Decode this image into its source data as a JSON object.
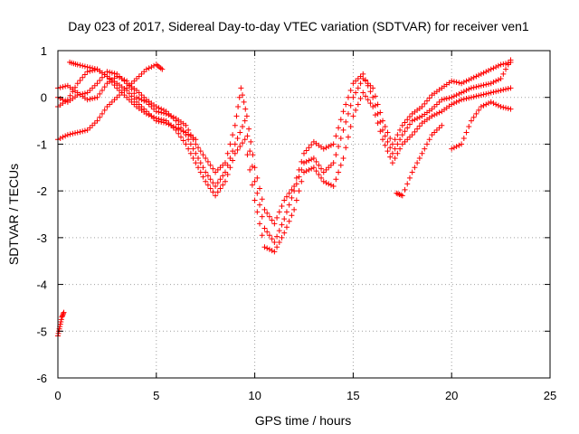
{
  "chart_data": {
    "type": "scatter",
    "title": "Day 023 of 2017, Sidereal Day-to-day VTEC variation (SDTVAR) for receiver ven1",
    "xlabel": "GPS time / hours",
    "ylabel": "SDTVAR / TECUs",
    "xlim": [
      0,
      25
    ],
    "ylim": [
      -6,
      1
    ],
    "x_ticks": [
      0,
      5,
      10,
      15,
      20,
      25
    ],
    "y_ticks": [
      1,
      0,
      -1,
      -2,
      -3,
      -4,
      -5,
      -6
    ],
    "grid": true,
    "marker": "plus",
    "color": "#ff0000",
    "series": [
      {
        "points": [
          [
            0.0,
            -5.1
          ],
          [
            0.1,
            -4.9
          ],
          [
            0.2,
            -4.7
          ],
          [
            0.3,
            -4.6
          ]
        ]
      },
      {
        "points": [
          [
            0.0,
            0.2
          ],
          [
            0.5,
            0.25
          ],
          [
            1.0,
            0.1
          ],
          [
            1.5,
            -0.05
          ],
          [
            2.0,
            0.0
          ],
          [
            2.5,
            0.3
          ],
          [
            3.0,
            0.45
          ],
          [
            3.5,
            0.35
          ],
          [
            4.0,
            0.0
          ],
          [
            4.5,
            -0.1
          ],
          [
            5.0,
            -0.3
          ],
          [
            5.5,
            -0.35
          ],
          [
            6.0,
            -0.45
          ],
          [
            6.5,
            -0.6
          ],
          [
            7.0,
            -1.0
          ],
          [
            7.5,
            -1.3
          ],
          [
            8.0,
            -1.6
          ],
          [
            8.5,
            -1.4
          ],
          [
            9.0,
            -0.6
          ],
          [
            9.3,
            0.2
          ],
          [
            9.6,
            -0.4
          ],
          [
            10.0,
            -1.5
          ],
          [
            10.5,
            -2.4
          ],
          [
            11.0,
            -2.7
          ],
          [
            11.5,
            -2.2
          ],
          [
            12.0,
            -1.9
          ],
          [
            12.5,
            -1.2
          ],
          [
            13.0,
            -0.95
          ],
          [
            13.5,
            -1.1
          ],
          [
            14.0,
            -1.0
          ],
          [
            14.5,
            -0.3
          ],
          [
            15.0,
            0.3
          ],
          [
            15.5,
            0.5
          ],
          [
            16.0,
            0.0
          ],
          [
            16.5,
            -0.7
          ],
          [
            17.0,
            -1.2
          ],
          [
            17.5,
            -0.8
          ],
          [
            18.0,
            -0.5
          ],
          [
            18.5,
            -0.4
          ],
          [
            19.0,
            -0.25
          ],
          [
            19.5,
            -0.05
          ],
          [
            20.0,
            0.0
          ],
          [
            20.5,
            0.1
          ],
          [
            21.0,
            0.2
          ],
          [
            21.5,
            0.25
          ],
          [
            22.0,
            0.3
          ],
          [
            22.5,
            0.4
          ],
          [
            23.0,
            0.8
          ]
        ]
      },
      {
        "points": [
          [
            0.0,
            0.0
          ],
          [
            0.5,
            -0.1
          ],
          [
            1.0,
            0.05
          ],
          [
            1.5,
            0.1
          ],
          [
            2.0,
            0.3
          ],
          [
            2.5,
            0.55
          ],
          [
            3.0,
            0.5
          ],
          [
            3.5,
            0.3
          ],
          [
            4.0,
            0.15
          ],
          [
            4.5,
            -0.05
          ],
          [
            5.0,
            -0.2
          ],
          [
            5.5,
            -0.3
          ],
          [
            6.0,
            -0.5
          ],
          [
            6.5,
            -0.8
          ],
          [
            7.0,
            -1.2
          ],
          [
            7.5,
            -1.6
          ],
          [
            8.0,
            -1.9
          ],
          [
            8.5,
            -1.6
          ],
          [
            9.0,
            -1.0
          ],
          [
            9.5,
            -0.5
          ],
          [
            10.0,
            -1.8
          ],
          [
            10.5,
            -2.8
          ],
          [
            11.0,
            -3.1
          ],
          [
            11.5,
            -2.6
          ],
          [
            12.0,
            -2.0
          ],
          [
            12.5,
            -1.4
          ],
          [
            13.0,
            -1.3
          ],
          [
            13.5,
            -1.6
          ],
          [
            14.0,
            -1.4
          ],
          [
            14.5,
            -0.7
          ],
          [
            15.0,
            0.0
          ],
          [
            15.5,
            0.4
          ],
          [
            16.0,
            0.2
          ],
          [
            16.5,
            -0.5
          ],
          [
            17.0,
            -1.0
          ],
          [
            17.5,
            -0.6
          ],
          [
            18.0,
            -0.35
          ],
          [
            18.5,
            -0.2
          ],
          [
            19.0,
            0.05
          ],
          [
            19.5,
            0.2
          ],
          [
            20.0,
            0.35
          ],
          [
            20.5,
            0.3
          ],
          [
            21.0,
            0.4
          ],
          [
            21.5,
            0.5
          ],
          [
            22.0,
            0.6
          ],
          [
            22.5,
            0.7
          ],
          [
            23.0,
            0.75
          ]
        ]
      },
      {
        "points": [
          [
            0.0,
            -0.2
          ],
          [
            0.5,
            -0.05
          ],
          [
            1.0,
            0.3
          ],
          [
            1.5,
            0.55
          ],
          [
            2.0,
            0.6
          ],
          [
            2.5,
            0.45
          ],
          [
            3.0,
            0.2
          ],
          [
            3.5,
            0.0
          ],
          [
            4.0,
            -0.2
          ],
          [
            4.5,
            -0.35
          ],
          [
            5.0,
            -0.45
          ],
          [
            5.5,
            -0.5
          ],
          [
            6.0,
            -0.7
          ],
          [
            6.5,
            -1.0
          ],
          [
            7.0,
            -1.4
          ],
          [
            7.5,
            -1.8
          ],
          [
            8.0,
            -2.1
          ],
          [
            8.5,
            -1.8
          ],
          [
            9.0,
            -1.2
          ],
          [
            9.5,
            -0.9
          ],
          [
            10.0,
            -2.2
          ],
          [
            10.5,
            -3.2
          ],
          [
            11.0,
            -3.3
          ],
          [
            11.5,
            -2.9
          ],
          [
            12.0,
            -2.4
          ],
          [
            12.5,
            -1.6
          ],
          [
            13.0,
            -1.5
          ],
          [
            13.5,
            -1.8
          ],
          [
            14.0,
            -1.9
          ],
          [
            14.5,
            -1.3
          ],
          [
            15.0,
            -0.4
          ],
          [
            15.5,
            0.1
          ],
          [
            16.0,
            -0.2
          ],
          [
            16.5,
            -0.9
          ],
          [
            17.0,
            -1.4
          ],
          [
            17.5,
            -1.0
          ],
          [
            18.0,
            -0.8
          ],
          [
            18.5,
            -0.55
          ],
          [
            19.0,
            -0.4
          ],
          [
            19.5,
            -0.3
          ],
          [
            20.0,
            -0.15
          ],
          [
            20.5,
            -0.05
          ],
          [
            21.0,
            0.0
          ],
          [
            21.5,
            0.05
          ],
          [
            22.0,
            0.1
          ],
          [
            22.5,
            0.15
          ],
          [
            23.0,
            0.2
          ]
        ]
      },
      {
        "points": [
          [
            0.0,
            -0.9
          ],
          [
            0.5,
            -0.8
          ],
          [
            1.0,
            -0.75
          ],
          [
            1.5,
            -0.7
          ],
          [
            2.0,
            -0.5
          ],
          [
            2.5,
            -0.2
          ],
          [
            3.0,
            0.0
          ],
          [
            3.5,
            0.2
          ],
          [
            4.0,
            0.4
          ],
          [
            4.5,
            0.6
          ],
          [
            5.0,
            0.7
          ],
          [
            5.3,
            0.6
          ]
        ]
      },
      {
        "points": [
          [
            0.6,
            0.75
          ],
          [
            1.0,
            0.7
          ],
          [
            1.5,
            0.65
          ],
          [
            2.0,
            0.6
          ],
          [
            2.5,
            0.45
          ],
          [
            3.0,
            0.3
          ],
          [
            3.5,
            0.15
          ],
          [
            4.0,
            -0.1
          ],
          [
            4.5,
            -0.3
          ],
          [
            5.0,
            -0.5
          ],
          [
            5.5,
            -0.55
          ],
          [
            6.0,
            -0.65
          ],
          [
            6.5,
            -0.75
          ],
          [
            7.0,
            -0.9
          ]
        ]
      },
      {
        "points": [
          [
            17.2,
            -2.05
          ],
          [
            17.5,
            -2.1
          ],
          [
            18.0,
            -1.6
          ],
          [
            18.5,
            -1.2
          ],
          [
            19.0,
            -0.8
          ],
          [
            19.5,
            -0.6
          ]
        ]
      },
      {
        "points": [
          [
            20.0,
            -1.1
          ],
          [
            20.5,
            -1.0
          ],
          [
            21.0,
            -0.5
          ],
          [
            21.5,
            -0.2
          ],
          [
            22.0,
            -0.1
          ],
          [
            22.5,
            -0.2
          ],
          [
            23.0,
            -0.25
          ]
        ]
      }
    ]
  }
}
